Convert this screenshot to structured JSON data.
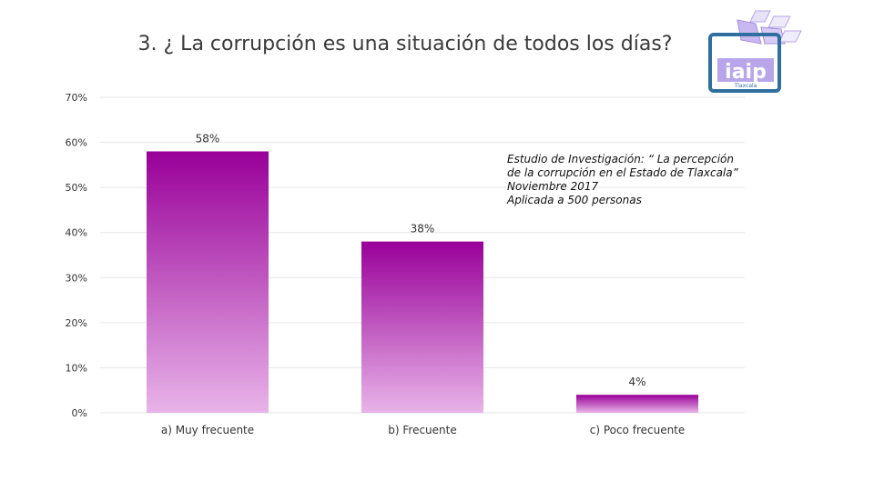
{
  "chart_data": {
    "type": "bar",
    "title": "3. ¿ La corrupción es una situación de todos los días?",
    "categories": [
      "a) Muy frecuente",
      "b) Frecuente",
      "c) Poco frecuente"
    ],
    "values": [
      58,
      38,
      4
    ],
    "data_labels": [
      "58%",
      "38%",
      "4%"
    ],
    "ylim": [
      0,
      70
    ],
    "yticks": [
      0,
      10,
      20,
      30,
      40,
      50,
      60,
      70
    ],
    "ytick_labels": [
      "0%",
      "10%",
      "20%",
      "30%",
      "40%",
      "50%",
      "60%",
      "70%"
    ],
    "grid": true,
    "xlabel": "",
    "ylabel": ""
  },
  "note": {
    "line1": "Estudio de Investigación:  “ La percepción",
    "line2": "de la corrupción en el Estado de Tlaxcala”",
    "line3": "Noviembre 2017",
    "line4": "Aplicada a 500 personas"
  },
  "logo": {
    "text": "iaip",
    "subtext": "Tlaxcala"
  },
  "colors": {
    "bar_top": "#990099",
    "bar_bottom": "#e8b4e8",
    "grid": "#e6e6e6",
    "logo_blue": "#2f6f9f",
    "logo_purple": "#b9a6ea"
  }
}
